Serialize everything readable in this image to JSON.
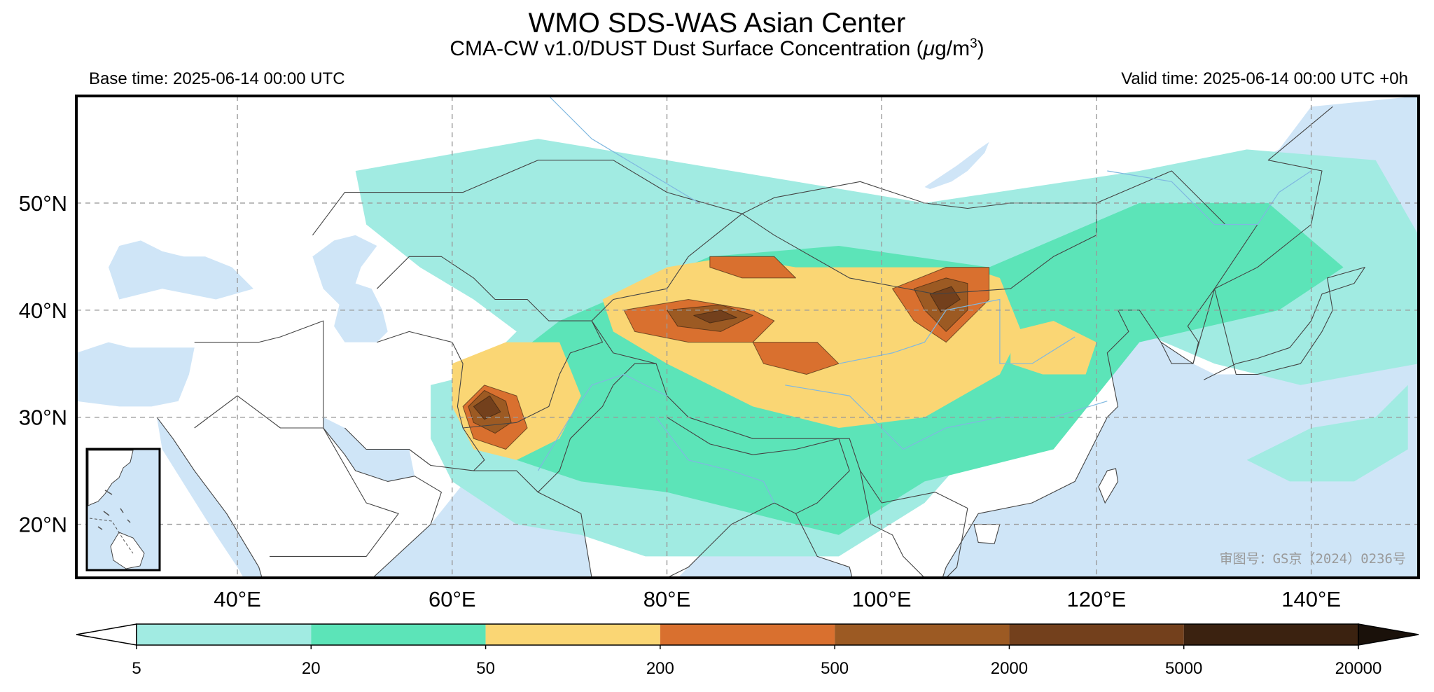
{
  "header": {
    "title": "WMO SDS-WAS Asian Center",
    "subtitle_main": "CMA-CW v1.0/DUST Dust Surface Concentration (",
    "subtitle_unit_mu": "μ",
    "subtitle_unit": "g/m",
    "subtitle_unit_exp": "3",
    "subtitle_close": ")",
    "base_time": "Base time: 2025-06-14 00:00 UTC",
    "valid_time": "Valid time: 2025-06-14 00:00 UTC +0h"
  },
  "map": {
    "lon_range": [
      25,
      150
    ],
    "lat_range": [
      15,
      60
    ],
    "lon_ticks": [
      40,
      60,
      80,
      100,
      120,
      140
    ],
    "lon_tick_labels": [
      "40°E",
      "60°E",
      "80°E",
      "100°E",
      "120°E",
      "140°E"
    ],
    "lat_ticks": [
      20,
      30,
      40,
      50
    ],
    "lat_tick_labels": [
      "20°N",
      "30°N",
      "40°N",
      "50°N"
    ],
    "gridlines": true,
    "inset": "bottom-left",
    "watermark": "审图号：GS京（2024）0236号",
    "ocean_color": "#cfe5f7",
    "border_color": "#444444",
    "river_color": "#7fb8e0",
    "dust_regions": [
      {
        "level": 1,
        "label": "north-asia-dust-band",
        "ring": [
          [
            51,
            53
          ],
          [
            68,
            56
          ],
          [
            86,
            53
          ],
          [
            104,
            50
          ],
          [
            124,
            53
          ],
          [
            134,
            55
          ],
          [
            146,
            54
          ],
          [
            150,
            47
          ],
          [
            150,
            35
          ],
          [
            139,
            33
          ],
          [
            131,
            35
          ],
          [
            124,
            38
          ],
          [
            112,
            31
          ],
          [
            104,
            22
          ],
          [
            96,
            17
          ],
          [
            86,
            17
          ],
          [
            78,
            17
          ],
          [
            72,
            19
          ],
          [
            66,
            20
          ],
          [
            60,
            24
          ],
          [
            58,
            28
          ],
          [
            58,
            33
          ],
          [
            62,
            34
          ],
          [
            66,
            38
          ],
          [
            62,
            41
          ],
          [
            57,
            44
          ],
          [
            52,
            48
          ]
        ]
      },
      {
        "level": 1,
        "label": "pacific-east-japan",
        "ring": [
          [
            134,
            26
          ],
          [
            140,
            29
          ],
          [
            146,
            30
          ],
          [
            149,
            33
          ],
          [
            149,
            27
          ],
          [
            144,
            24
          ],
          [
            138,
            24
          ]
        ]
      },
      {
        "level": 2,
        "label": "central-belt",
        "ring": [
          [
            61,
            32
          ],
          [
            70,
            39
          ],
          [
            84,
            45
          ],
          [
            96,
            46
          ],
          [
            110,
            44
          ],
          [
            124,
            50
          ],
          [
            136,
            50
          ],
          [
            143,
            44
          ],
          [
            137,
            40
          ],
          [
            124,
            37
          ],
          [
            116,
            27
          ],
          [
            104,
            24
          ],
          [
            96,
            19
          ],
          [
            88,
            21
          ],
          [
            80,
            23
          ],
          [
            72,
            24
          ],
          [
            66,
            26
          ],
          [
            62,
            29
          ]
        ]
      },
      {
        "level": 3,
        "label": "iran-afghan-pakistan",
        "ring": [
          [
            60,
            35
          ],
          [
            65,
            37
          ],
          [
            70,
            37
          ],
          [
            72,
            32
          ],
          [
            70,
            28
          ],
          [
            66,
            26
          ],
          [
            62,
            27
          ],
          [
            60,
            31
          ]
        ]
      },
      {
        "level": 3,
        "label": "tarim-tibet-gobi",
        "ring": [
          [
            74,
            41
          ],
          [
            80,
            44
          ],
          [
            86,
            45
          ],
          [
            92,
            44
          ],
          [
            100,
            44
          ],
          [
            108,
            44
          ],
          [
            111,
            43
          ],
          [
            113,
            38
          ],
          [
            111,
            34
          ],
          [
            104,
            30
          ],
          [
            96,
            29
          ],
          [
            88,
            31
          ],
          [
            80,
            35
          ],
          [
            75,
            38
          ]
        ]
      },
      {
        "level": 3,
        "label": "north-china-plain",
        "ring": [
          [
            112,
            38
          ],
          [
            116,
            39
          ],
          [
            120,
            37
          ],
          [
            119,
            34
          ],
          [
            115,
            34
          ],
          [
            112,
            35
          ]
        ]
      },
      {
        "level": 4,
        "label": "helmand",
        "ring": [
          [
            61,
            31
          ],
          [
            63,
            33
          ],
          [
            66,
            32
          ],
          [
            67,
            29
          ],
          [
            65,
            27
          ],
          [
            62,
            28
          ]
        ]
      },
      {
        "level": 4,
        "label": "tarim",
        "ring": [
          [
            76,
            40
          ],
          [
            82,
            41
          ],
          [
            88,
            40
          ],
          [
            90,
            39
          ],
          [
            88,
            37
          ],
          [
            82,
            37
          ],
          [
            77,
            38
          ]
        ]
      },
      {
        "level": 4,
        "label": "tibet-north",
        "ring": [
          [
            88,
            37
          ],
          [
            94,
            37
          ],
          [
            96,
            35
          ],
          [
            93,
            34
          ],
          [
            89,
            35
          ]
        ]
      },
      {
        "level": 4,
        "label": "junggar",
        "ring": [
          [
            84,
            45
          ],
          [
            90,
            45
          ],
          [
            92,
            43
          ],
          [
            87,
            43
          ],
          [
            84,
            44
          ]
        ]
      },
      {
        "level": 4,
        "label": "gobi",
        "ring": [
          [
            101,
            42
          ],
          [
            106,
            44
          ],
          [
            110,
            44
          ],
          [
            110,
            41
          ],
          [
            106,
            37
          ],
          [
            103,
            39
          ]
        ]
      },
      {
        "level": 5,
        "label": "helmand-core",
        "ring": [
          [
            61.5,
            31
          ],
          [
            63,
            32.5
          ],
          [
            65,
            31.5
          ],
          [
            65.5,
            29.5
          ],
          [
            64,
            28.5
          ],
          [
            62,
            29.5
          ]
        ]
      },
      {
        "level": 5,
        "label": "tarim-core",
        "ring": [
          [
            80,
            40
          ],
          [
            85,
            40.5
          ],
          [
            88,
            39.5
          ],
          [
            85,
            38
          ],
          [
            81,
            38.5
          ]
        ]
      },
      {
        "level": 5,
        "label": "gobi-core",
        "ring": [
          [
            103,
            42
          ],
          [
            106,
            43
          ],
          [
            108,
            42.5
          ],
          [
            108,
            40
          ],
          [
            106,
            38
          ],
          [
            104,
            40
          ]
        ]
      },
      {
        "level": 6,
        "label": "helmand-peak",
        "ring": [
          [
            62,
            31
          ],
          [
            63.5,
            32
          ],
          [
            64.5,
            30.5
          ],
          [
            63,
            29.8
          ]
        ]
      },
      {
        "level": 6,
        "label": "tarim-peak",
        "ring": [
          [
            82.5,
            39.5
          ],
          [
            85,
            40
          ],
          [
            86.5,
            39.3
          ],
          [
            84,
            38.8
          ]
        ]
      },
      {
        "level": 6,
        "label": "gobi-peak",
        "ring": [
          [
            104.5,
            41.5
          ],
          [
            106.5,
            42.2
          ],
          [
            107.3,
            41
          ],
          [
            105.5,
            39.8
          ]
        ]
      }
    ]
  },
  "colorbar": {
    "levels": [
      "5",
      "20",
      "50",
      "200",
      "500",
      "2000",
      "5000",
      "20000"
    ],
    "colors": [
      "#a1ebe2",
      "#5ce4b8",
      "#fad674",
      "#d9702f",
      "#9c5a23",
      "#73401c",
      "#3b2210"
    ],
    "under_color": "#ffffff",
    "over_color": "#1a110a"
  }
}
